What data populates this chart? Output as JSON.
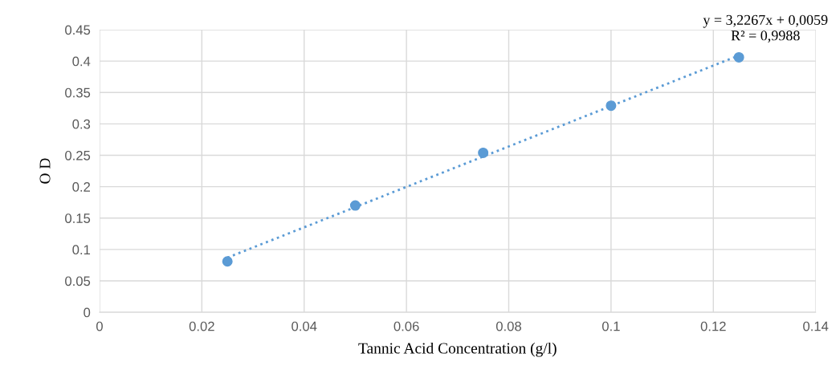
{
  "chart_data": {
    "type": "scatter",
    "xlabel": "Tannic Acid Concentration (g/l)",
    "ylabel": "O D",
    "series": [
      {
        "color": "#5b9bd5",
        "x": [
          0.025,
          0.05,
          0.075,
          0.1,
          0.125
        ],
        "values": [
          0.081,
          0.17,
          0.254,
          0.329,
          0.406
        ],
        "marker": "circle"
      },
      {
        "type": "line",
        "color": "#5b9bd5",
        "x": [
          0.025,
          0.125
        ],
        "values": [
          0.087,
          0.409
        ],
        "line_style": "dotted",
        "marker": "none"
      }
    ],
    "annotations": [
      "y = 3,2267x + 0,0059",
      "R² = 0,9988"
    ],
    "xlim": [
      0,
      0.14
    ],
    "xticks": [
      0,
      0.02,
      0.04,
      0.06,
      0.08,
      0.1,
      0.12,
      0.14
    ],
    "ylim": [
      0,
      0.45
    ],
    "yticks": [
      0,
      0.05,
      0.1,
      0.15,
      0.2,
      0.25,
      0.3,
      0.35,
      0.4,
      0.45
    ],
    "grid": true,
    "legend": false
  }
}
